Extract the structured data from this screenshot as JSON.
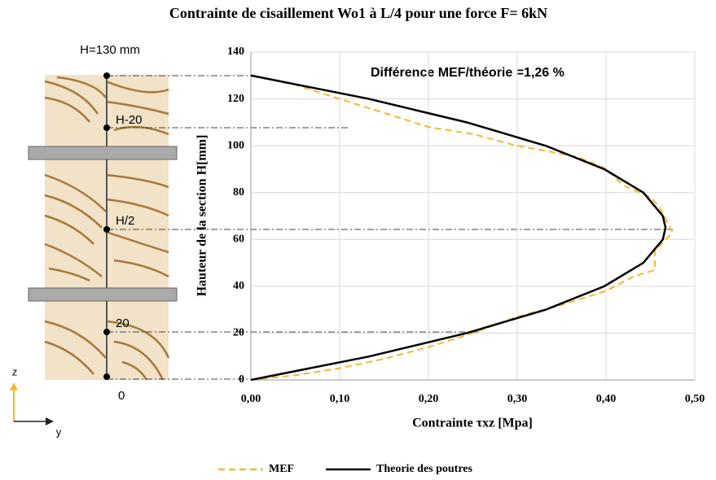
{
  "chart_data": {
    "type": "line",
    "title": "Contrainte de cisaillement Wo1 à L/4 pour une force F= 6kN",
    "xlabel": "Contrainte τxz [Mpa]",
    "ylabel": "Hauteur de la section H[mm]",
    "annotation": "Différence MEF/théorie =1,26 %",
    "xlim": [
      0,
      0.5
    ],
    "ylim": [
      0,
      140
    ],
    "xticks": [
      {
        "value": 0,
        "label": "0,00"
      },
      {
        "value": 0.1,
        "label": "0,10"
      },
      {
        "value": 0.2,
        "label": "0,20"
      },
      {
        "value": 0.3,
        "label": "0,30"
      },
      {
        "value": 0.4,
        "label": "0,40"
      },
      {
        "value": 0.5,
        "label": "0,50"
      }
    ],
    "yticks": [
      0,
      20,
      40,
      60,
      80,
      100,
      120,
      140
    ],
    "grid": true,
    "legend": "bottom",
    "series": [
      {
        "name": "MEF",
        "color": "#f2b830",
        "dash": true,
        "x": [
          0,
          0.05,
          0.1,
          0.15,
          0.2,
          0.25,
          0.3,
          0.35,
          0.4,
          0.43,
          0.455,
          0.455,
          0.475,
          0.46,
          0.45,
          0.42,
          0.4,
          0.37,
          0.33,
          0.3,
          0.25,
          0.2,
          0.15,
          0.1,
          0.05,
          0
        ],
        "y": [
          0,
          2,
          5,
          9,
          14,
          20,
          27,
          32,
          38,
          44,
          47,
          55,
          63,
          74,
          78,
          83,
          90,
          95,
          98,
          100,
          105,
          108,
          114,
          120,
          126,
          130
        ]
      },
      {
        "name": "Theorie des poutres",
        "color": "#000000",
        "dash": false,
        "x": [
          0,
          0.133,
          0.243,
          0.332,
          0.398,
          0.442,
          0.464,
          0.467,
          0.464,
          0.442,
          0.398,
          0.332,
          0.243,
          0.133,
          0
        ],
        "y": [
          0,
          10,
          20,
          30,
          40,
          50,
          60,
          65,
          70,
          80,
          90,
          100,
          110,
          120,
          130
        ]
      }
    ]
  },
  "illustration": {
    "labels": [
      "H=130 mm",
      "H-20",
      "H/2",
      "20",
      "0"
    ],
    "axis_z": "z",
    "axis_y": "y"
  }
}
